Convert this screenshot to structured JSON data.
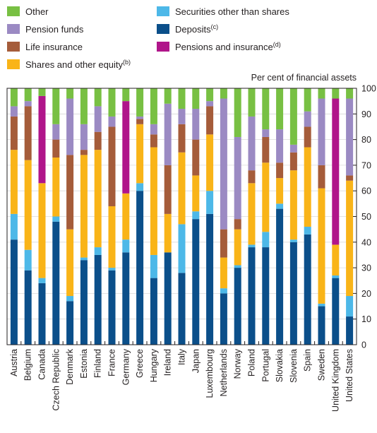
{
  "chart_data": {
    "type": "bar",
    "stacked": true,
    "y_axis_title": "Per cent  of financial assets",
    "ylim": [
      0,
      100
    ],
    "y_ticks": [
      "0",
      "10",
      "20",
      "30",
      "40",
      "50",
      "60",
      "70",
      "80",
      "90",
      "100"
    ],
    "y_axis_position": "right",
    "categories": [
      "Austria",
      "Belgium",
      "Canada",
      "Czech Republic",
      "Denmark",
      "Estonia",
      "Finland",
      "France",
      "Germany",
      "Greece",
      "Hungary",
      "Ireland",
      "Italy",
      "Japan",
      "Luxembourg",
      "Netherlands",
      "Norway",
      "Poland",
      "Portugal",
      "Slovakia",
      "Slovenia",
      "Spain",
      "Sweden",
      "United Kingdom",
      "United States"
    ],
    "series": [
      {
        "key": "deposits",
        "name": "Deposits",
        "note": "(c)",
        "color": "#0b4f8a",
        "values": [
          41,
          29,
          24,
          48,
          17,
          33,
          35,
          29,
          36,
          60,
          26,
          36,
          28,
          49,
          51,
          20,
          30,
          38,
          38,
          53,
          40,
          43,
          15,
          26,
          11
        ]
      },
      {
        "key": "securities",
        "name": "Securities other than shares",
        "note": "",
        "color": "#4db8e8",
        "values": [
          10,
          8,
          2,
          2,
          2,
          1,
          3,
          1,
          5,
          3,
          9,
          0,
          19,
          3,
          9,
          2,
          1,
          1,
          6,
          2,
          1,
          3,
          1,
          1,
          8
        ]
      },
      {
        "key": "shares",
        "name": "Shares and other equity",
        "note": "(b)",
        "color": "#f9b418",
        "values": [
          25,
          35,
          37,
          23,
          26,
          40,
          38,
          24,
          18,
          23,
          42,
          15,
          28,
          14,
          22,
          12,
          14,
          24,
          27,
          10,
          27,
          31,
          45,
          12,
          45
        ]
      },
      {
        "key": "life",
        "name": "Life insurance",
        "note": "",
        "color": "#a55c3a",
        "values": [
          13,
          21,
          0,
          7,
          29,
          2,
          7,
          31,
          0,
          2,
          5,
          19,
          11,
          14,
          11,
          11,
          4,
          5,
          10,
          6,
          7,
          8,
          9,
          0,
          2
        ]
      },
      {
        "key": "pensionsins",
        "name": "Pensions and insurance",
        "note": "(d)",
        "color": "#b0158a",
        "values": [
          0,
          0,
          34,
          0,
          0,
          0,
          0,
          0,
          36,
          0,
          0,
          0,
          0,
          0,
          0,
          0,
          0,
          0,
          0,
          0,
          0,
          0,
          0,
          57,
          0
        ]
      },
      {
        "key": "pension",
        "name": "Pension funds",
        "note": "",
        "color": "#9b8ac3",
        "values": [
          4,
          2,
          0,
          6,
          22,
          10,
          10,
          4,
          0,
          1,
          4,
          24,
          6,
          12,
          2,
          51,
          32,
          21,
          3,
          13,
          3,
          6,
          26,
          0,
          30
        ]
      },
      {
        "key": "other",
        "name": "Other",
        "note": "",
        "color": "#78c043",
        "values": [
          7,
          5,
          3,
          14,
          4,
          14,
          7,
          11,
          5,
          11,
          14,
          6,
          8,
          8,
          5,
          4,
          19,
          11,
          16,
          16,
          22,
          9,
          4,
          4,
          4
        ]
      }
    ],
    "legend_order": [
      "other",
      "securities",
      "pension",
      "deposits",
      "life",
      "pensionsins",
      "shares"
    ],
    "grid": true,
    "legend_placement": "top"
  }
}
